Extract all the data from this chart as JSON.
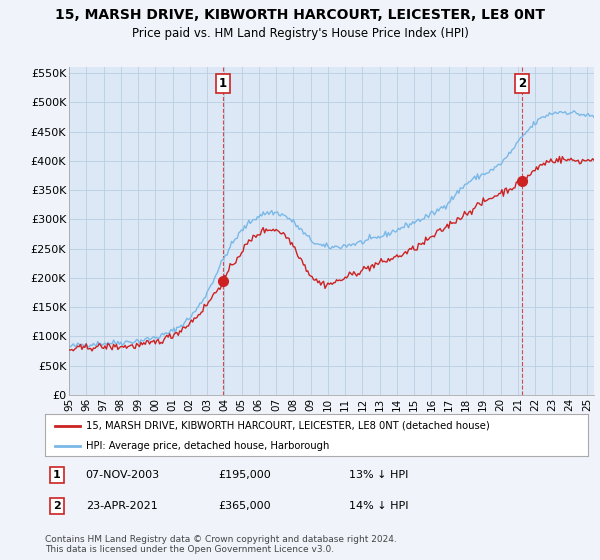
{
  "title": "15, MARSH DRIVE, KIBWORTH HARCOURT, LEICESTER, LE8 0NT",
  "subtitle": "Price paid vs. HM Land Registry's House Price Index (HPI)",
  "ylim": [
    0,
    560000
  ],
  "yticks": [
    0,
    50000,
    100000,
    150000,
    200000,
    250000,
    300000,
    350000,
    400000,
    450000,
    500000,
    550000
  ],
  "ytick_labels": [
    "£0",
    "£50K",
    "£100K",
    "£150K",
    "£200K",
    "£250K",
    "£300K",
    "£350K",
    "£400K",
    "£450K",
    "£500K",
    "£550K"
  ],
  "hpi_color": "#7ab8e8",
  "price_color": "#cc2222",
  "marker1_month": 107,
  "marker2_month": 315,
  "marker1_price": 195000,
  "marker2_price": 365000,
  "legend_line1": "15, MARSH DRIVE, KIBWORTH HARCOURT, LEICESTER, LE8 0NT (detached house)",
  "legend_line2": "HPI: Average price, detached house, Harborough",
  "footnote": "Contains HM Land Registry data © Crown copyright and database right 2024.\nThis data is licensed under the Open Government Licence v3.0.",
  "background_color": "#f0f4fa",
  "plot_bg_color": "#dce8f5",
  "grid_color": "#b8cfe0",
  "n_months": 366,
  "hpi_key_x": [
    0,
    24,
    60,
    96,
    107,
    120,
    156,
    168,
    192,
    216,
    240,
    264,
    276,
    300,
    315,
    330,
    355,
    366
  ],
  "hpi_key_y": [
    82000,
    88000,
    98000,
    175000,
    230000,
    280000,
    295000,
    265000,
    255000,
    270000,
    295000,
    330000,
    360000,
    395000,
    440000,
    475000,
    480000,
    475000
  ],
  "price_key_x": [
    0,
    24,
    60,
    96,
    107,
    120,
    156,
    168,
    192,
    216,
    240,
    264,
    276,
    300,
    315,
    330,
    355,
    366
  ],
  "price_key_y": [
    76000,
    82000,
    90000,
    155000,
    195000,
    245000,
    255000,
    205000,
    200000,
    225000,
    250000,
    290000,
    310000,
    345000,
    365000,
    395000,
    400000,
    405000
  ]
}
